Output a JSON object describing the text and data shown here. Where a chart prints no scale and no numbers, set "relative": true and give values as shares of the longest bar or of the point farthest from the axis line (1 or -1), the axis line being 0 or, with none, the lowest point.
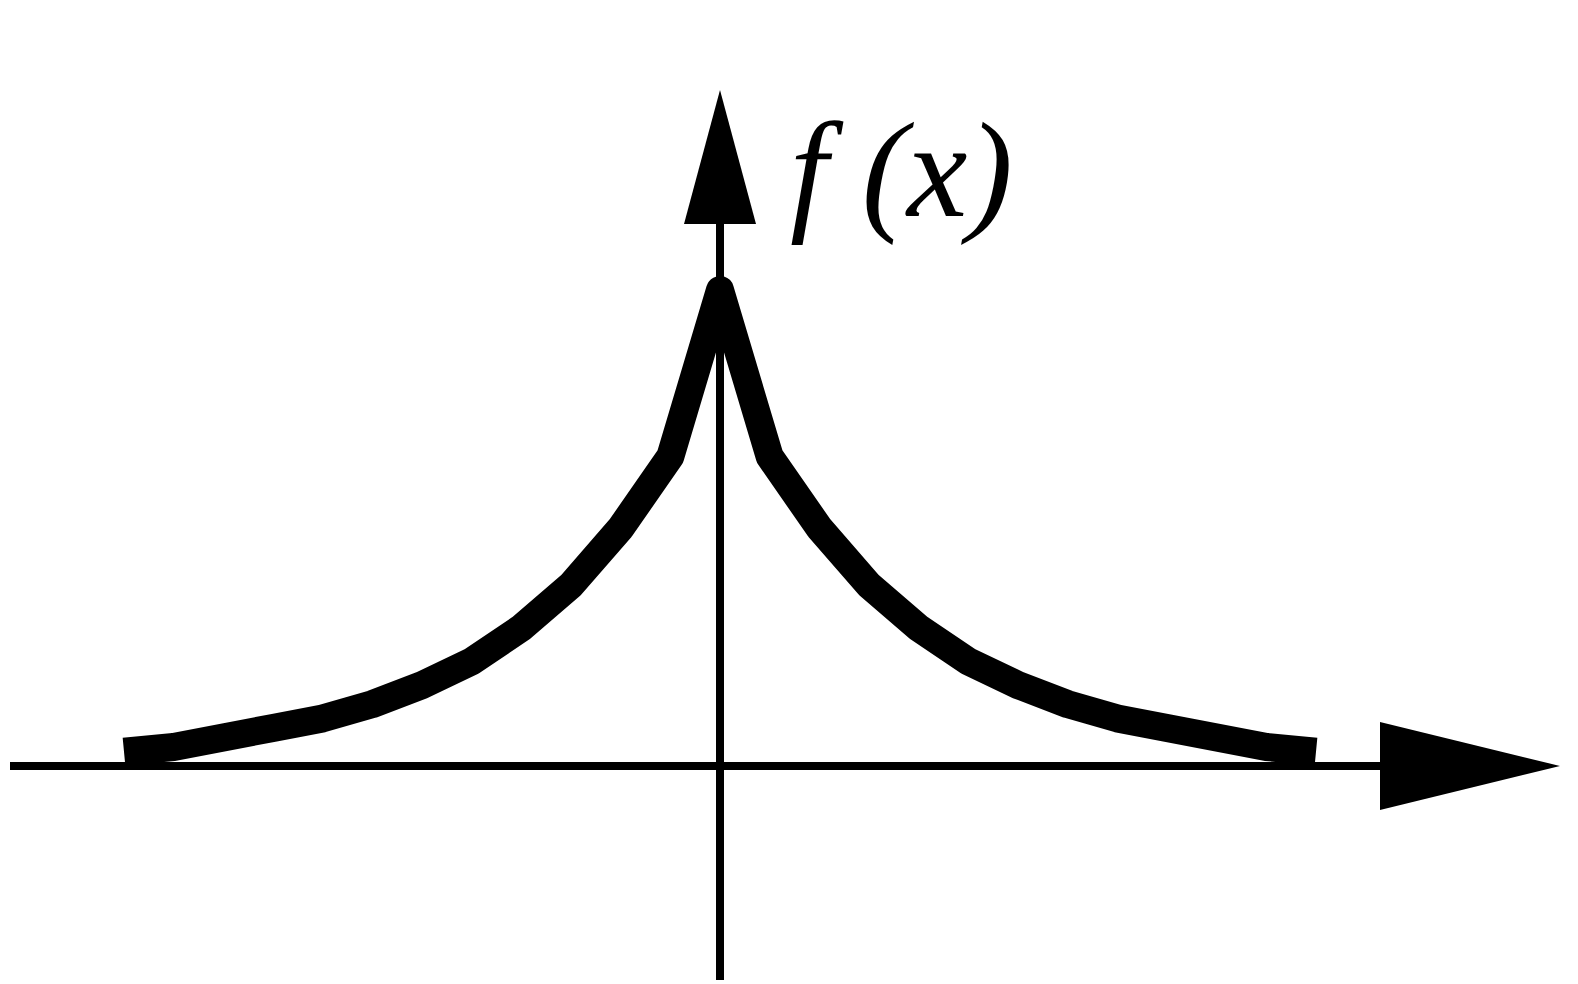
{
  "chart_data": {
    "type": "line",
    "ylabel": "f (x)",
    "relative": true,
    "color": "#000000",
    "marker": "none",
    "categories": [
      null,
      null,
      null,
      null,
      null,
      null,
      null,
      null,
      null,
      null,
      null,
      null,
      null,
      null,
      null,
      null,
      null,
      null,
      null,
      null,
      null,
      null,
      null,
      null,
      null
    ],
    "values": [
      0.03,
      0.04,
      0.06,
      0.08,
      0.1,
      0.13,
      0.17,
      0.22,
      0.29,
      0.38,
      0.5,
      0.65,
      1,
      0.65,
      0.5,
      0.38,
      0.29,
      0.22,
      0.17,
      0.13,
      0.1,
      0.08,
      0.06,
      0.04,
      0.03
    ]
  }
}
